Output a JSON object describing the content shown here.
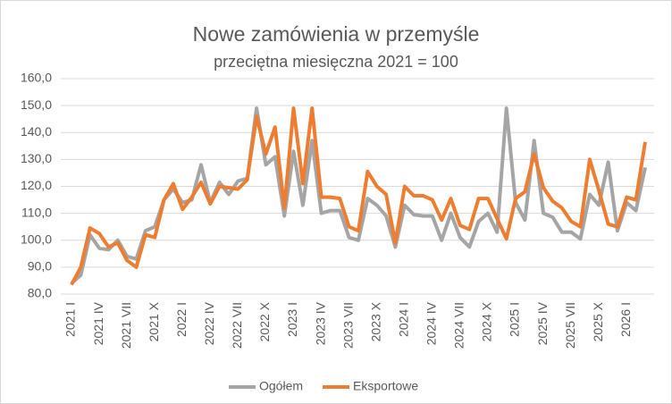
{
  "chart_data": {
    "type": "line",
    "title": "Nowe zamówienia w przemyśle",
    "subtitle": "przeciętna miesięczna 2021 = 100",
    "categories": [
      "2021 I",
      null,
      null,
      "2021 IV",
      null,
      null,
      "2021 VII",
      null,
      null,
      "2021 X",
      null,
      null,
      "2022 I",
      null,
      null,
      "2022 IV",
      null,
      null,
      "2022 VII",
      null,
      null,
      "2022 X",
      null,
      null,
      "2023 I",
      null,
      null,
      "2023 IV",
      null,
      null,
      "2023 VII",
      null,
      null,
      "2023 X",
      null,
      null,
      "2024 I",
      null,
      null,
      "2024 IV",
      null,
      null,
      "2024 VII",
      null,
      null,
      "2024 X",
      null,
      null,
      "2025 I",
      null,
      null,
      "2025 IV",
      null,
      null,
      "2025 VII",
      null,
      null,
      "2025 X",
      null,
      null,
      "2026 I",
      null,
      null
    ],
    "series": [
      {
        "name": "Ogółem",
        "color": "#a5a5a5",
        "values": [
          84,
          87,
          102,
          97,
          96.5,
          100,
          94,
          93,
          103.5,
          105,
          115,
          119,
          114,
          115,
          128,
          114,
          121.5,
          117,
          122,
          123,
          149,
          128,
          131,
          109,
          133,
          113,
          137,
          110,
          111,
          111,
          101,
          100,
          115.5,
          113,
          109,
          97.5,
          113,
          109.5,
          109,
          109,
          100,
          110,
          101,
          97.5,
          107,
          110,
          103,
          149,
          114,
          107.5,
          137,
          110,
          108.5,
          103,
          103,
          100.5,
          117,
          113,
          129,
          103.5,
          114,
          111,
          127
        ]
      },
      {
        "name": "Eksportowe",
        "color": "#ed7d31",
        "values": [
          83.5,
          90,
          104.5,
          102.5,
          97.5,
          99,
          92.5,
          90,
          102,
          101,
          115,
          121,
          111.5,
          116,
          121.5,
          113.5,
          120,
          119.5,
          119,
          122.5,
          146,
          132,
          142,
          112,
          149,
          121,
          149,
          116,
          116,
          115.5,
          105,
          103.5,
          125.5,
          120,
          117,
          99,
          120,
          116.5,
          116.5,
          115,
          107.5,
          115.5,
          105.5,
          104,
          115.5,
          115.5,
          108,
          100.5,
          115.5,
          118,
          132,
          119.5,
          114.5,
          112,
          107,
          105,
          130,
          118.5,
          106,
          105,
          116,
          115,
          136.5
        ]
      }
    ],
    "ylim": [
      80,
      160
    ],
    "yticks": [
      {
        "value": 80,
        "label": "80,0"
      },
      {
        "value": 90,
        "label": "90,0"
      },
      {
        "value": 100,
        "label": "100,0"
      },
      {
        "value": 110,
        "label": "110,0"
      },
      {
        "value": 120,
        "label": "120,0"
      },
      {
        "value": 130,
        "label": "130,0"
      },
      {
        "value": 140,
        "label": "140,0"
      },
      {
        "value": 150,
        "label": "150,0"
      },
      {
        "value": 160,
        "label": "160,0"
      }
    ],
    "grid": true,
    "legend": "bottom"
  }
}
